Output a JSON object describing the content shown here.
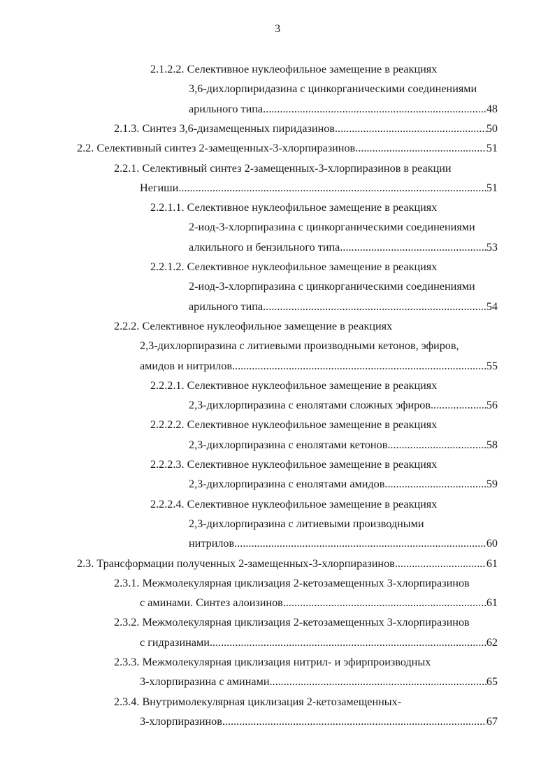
{
  "page_number": "3",
  "toc": [
    {
      "level": 2,
      "num": "2.1.2.2.",
      "lines": [
        "Селективное нуклеофильное замещение в реакциях",
        "3,6-дихлорпиридазина с цинкорганическими соединениями",
        "арильного типа"
      ],
      "page": "48"
    },
    {
      "level": 1,
      "num": "2.1.3.",
      "lines": [
        "Синтез 3,6-дизамещенных пиридазинов"
      ],
      "page": "50"
    },
    {
      "level": 0,
      "num": "2.2.",
      "lines": [
        "Селективный синтез 2-замещенных-3-хлорпиразинов"
      ],
      "page": "51"
    },
    {
      "level": 1,
      "num": "2.2.1.",
      "lines": [
        "Селективный синтез 2-замещенных-3-хлорпиразинов в реакции",
        "Негиши"
      ],
      "page": "51"
    },
    {
      "level": 2,
      "num": "2.2.1.1.",
      "lines": [
        "Селективное нуклеофильное замещение в реакциях",
        "2-иод-3-хлорпиразина с цинкорганическими соединениями",
        "алкильного и бензильного типа"
      ],
      "page": "53"
    },
    {
      "level": 2,
      "num": "2.2.1.2.",
      "lines": [
        "Селективное нуклеофильное замещение в реакциях",
        "2-иод-3-хлорпиразина с цинкорганическими соединениями",
        "арильного типа"
      ],
      "page": "54"
    },
    {
      "level": 1,
      "num": "2.2.2.",
      "lines": [
        "Селективное нуклеофильное замещение в реакциях",
        "2,3-дихлорпиразина с литиевыми производными кетонов, эфиров,",
        "амидов и нитрилов"
      ],
      "page": "55"
    },
    {
      "level": 2,
      "num": "2.2.2.1.",
      "lines": [
        "Селективное нуклеофильное замещение в реакциях",
        "2,3-дихлорпиразина с енолятами сложных эфиров"
      ],
      "page": "56"
    },
    {
      "level": 2,
      "num": "2.2.2.2.",
      "lines": [
        "Селективное нуклеофильное замещение в реакциях",
        "2,3-дихлорпиразина с енолятами кетонов"
      ],
      "page": "58"
    },
    {
      "level": 2,
      "num": "2.2.2.3.",
      "lines": [
        "Селективное нуклеофильное замещение в реакциях",
        "2,3-дихлорпиразина с енолятами амидов"
      ],
      "page": "59"
    },
    {
      "level": 2,
      "num": "2.2.2.4.",
      "lines": [
        "Селективное нуклеофильное замещение в реакциях",
        "2,3-дихлорпиразина с литиевыми производными",
        "нитрилов"
      ],
      "page": "60"
    },
    {
      "level": 0,
      "num": "2.3.",
      "lines": [
        "Трансформации полученных 2-замещенных-3-хлорпиразинов"
      ],
      "page": "61"
    },
    {
      "level": 1,
      "num": "2.3.1.",
      "lines": [
        "Межмолекулярная циклизация 2-кетозамещенных 3-хлорпиразинов",
        "с аминами. Синтез алоизинов"
      ],
      "page": "61"
    },
    {
      "level": 1,
      "num": "2.3.2.",
      "lines": [
        "Межмолекулярная циклизация 2-кетозамещенных 3-хлорпиразинов",
        "с гидразинами"
      ],
      "page": "62"
    },
    {
      "level": 1,
      "num": "2.3.3.",
      "lines": [
        "Межмолекулярная циклизация нитрил- и эфирпроизводных",
        "3-хлорпиразина с аминами"
      ],
      "page": "65"
    },
    {
      "level": 1,
      "num": "2.3.4.",
      "lines": [
        "Внутримолекулярная циклизация 2-кетозамещенных-",
        "3-хлорпиразинов"
      ],
      "page": "67"
    }
  ]
}
